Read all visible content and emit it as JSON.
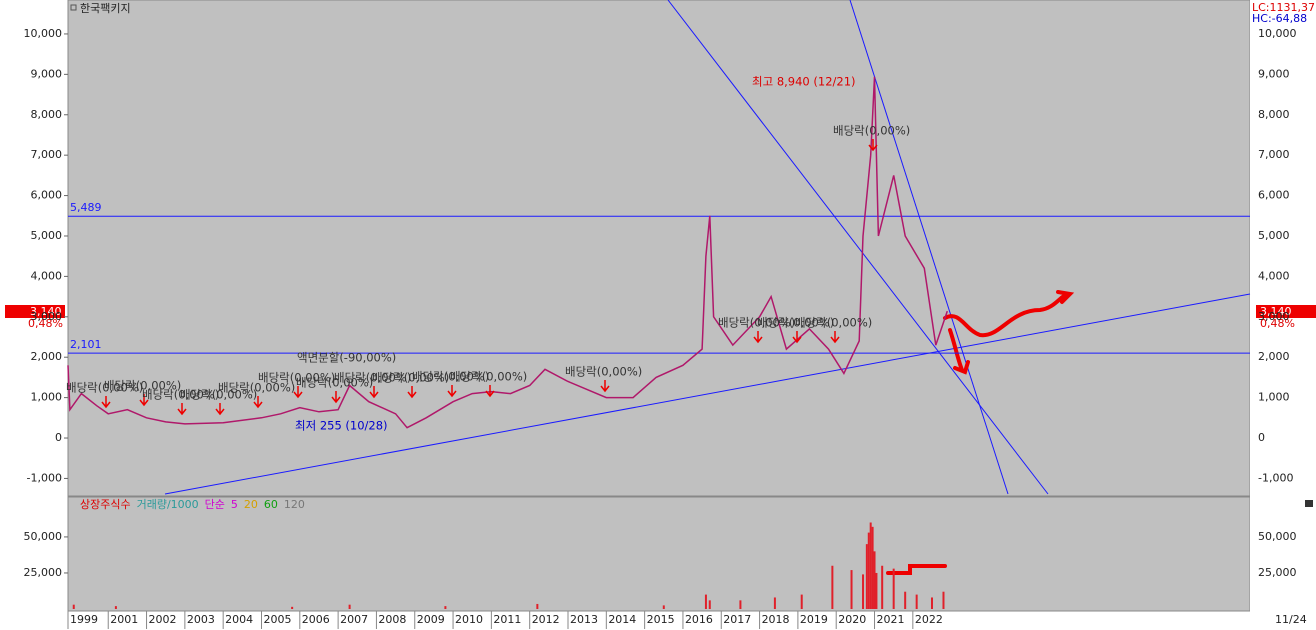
{
  "chart_data": [
    {
      "type": "line",
      "title": "한국팩키지",
      "lc_label": "LC:1131,37",
      "hc_label": "HC:-64,88",
      "last_price": {
        "value": 3140,
        "label": "3,140"
      },
      "change_label": "0,48%",
      "xlim": [
        1999.95,
        2030.8
      ],
      "xticks": [
        {
          "value": 1999.95,
          "label": "1999"
        },
        2001,
        2002,
        2003,
        2004,
        2005,
        2006,
        2007,
        2008,
        2009,
        2010,
        2011,
        2012,
        2013,
        2014,
        2015,
        2016,
        2017,
        2018,
        2019,
        2020,
        2021,
        2022
      ],
      "ylim": [
        -1410,
        10840
      ],
      "yticks": [
        {
          "value": -1000,
          "label": "-1,000"
        },
        0,
        {
          "value": 1000,
          "label": "1,000"
        },
        {
          "value": 2000,
          "label": "2,000"
        },
        {
          "value": 3000,
          "label": "3,000"
        },
        {
          "value": 4000,
          "label": "4,000"
        },
        {
          "value": 5000,
          "label": "5,000"
        },
        {
          "value": 6000,
          "label": "6,000"
        },
        {
          "value": 7000,
          "label": "7,000"
        },
        {
          "value": 8000,
          "label": "8,000"
        },
        {
          "value": 9000,
          "label": "9,000"
        },
        {
          "value": 10000,
          "label": "10,000"
        }
      ],
      "hlines": [
        {
          "value": 5489,
          "label": "5,489"
        },
        {
          "value": 2101,
          "label": "2,101"
        }
      ],
      "series": [
        {
          "color": "#b0186a",
          "x": [
            1999.95,
            2000.0,
            2000.3,
            2000.7,
            2001,
            2001.5,
            2002,
            2002.5,
            2003,
            2004,
            2005,
            2005.5,
            2006,
            2006.5,
            2007,
            2007.3,
            2007.8,
            2008.5,
            2008.8,
            2009.3,
            2010,
            2010.5,
            2011,
            2011.5,
            2012,
            2012.4,
            2013,
            2014,
            2014.7,
            2015.3,
            2016,
            2016.5,
            2016.6,
            2016.7,
            2016.8,
            2017.3,
            2018,
            2018.3,
            2018.7,
            2019.3,
            2019.8,
            2020.2,
            2020.6,
            2020.7,
            2020.9,
            2021.0,
            2021.1,
            2021.5,
            2021.8,
            2022.3,
            2022.6,
            2022.9
          ],
          "values": [
            1800,
            700,
            1100,
            800,
            600,
            700,
            500,
            400,
            350,
            380,
            500,
            600,
            750,
            650,
            700,
            1300,
            900,
            600,
            255,
            500,
            900,
            1100,
            1150,
            1100,
            1300,
            1700,
            1400,
            1000,
            1000,
            1500,
            1800,
            2200,
            4500,
            5500,
            3000,
            2300,
            3000,
            3500,
            2200,
            2700,
            2200,
            1600,
            2400,
            5000,
            7000,
            8940,
            5000,
            6500,
            5000,
            4200,
            2300,
            3140
          ]
        }
      ],
      "annotations": [
        "최고 8,940 (12/21)",
        "최저 255 (10/28)",
        "액면분할(-90,00%)",
        "배당락(0,00%)",
        "배당락(0,00%)",
        "배당락(0,00%)",
        "배당락(0,00%)",
        "배당락(0,00%)",
        "배당락(0,00%)",
        "배당락(0,00%)",
        "배당락(0,00%)",
        "배당락(0,00%)",
        "배당락(0,00%)",
        "배당락(0,00%)",
        "배당락(0,00%)",
        "배당락(0,00%)",
        "배당락(0,00%)",
        "배당락(0,00%)",
        "배당락(0,00%)"
      ]
    },
    {
      "type": "bar",
      "legend": [
        "상장주식수",
        "거래량/1000",
        "단순",
        "5",
        "20",
        "60",
        "120"
      ],
      "ylim": [
        0,
        77000
      ],
      "yticks": [
        {
          "value": 25000,
          "label": "25,000"
        },
        {
          "value": 50000,
          "label": "50,000"
        }
      ],
      "date_label": "11/24",
      "color": "#e0202a",
      "x": [
        2000.1,
        2001.2,
        2005.8,
        2007.3,
        2009.8,
        2012.2,
        2015.5,
        2016.6,
        2016.7,
        2017.5,
        2018.4,
        2019.1,
        2019.9,
        2020.4,
        2020.7,
        2020.8,
        2020.85,
        2020.9,
        2020.95,
        2021.0,
        2021.05,
        2021.2,
        2021.5,
        2021.8,
        2022.1,
        2022.5,
        2022.8
      ],
      "values": [
        3000,
        2000,
        1500,
        3000,
        2000,
        3500,
        2500,
        10000,
        6000,
        6000,
        8000,
        10000,
        30000,
        27000,
        24000,
        45000,
        53000,
        60000,
        57000,
        40000,
        25000,
        30000,
        28000,
        12000,
        10000,
        8000,
        12000
      ]
    }
  ]
}
